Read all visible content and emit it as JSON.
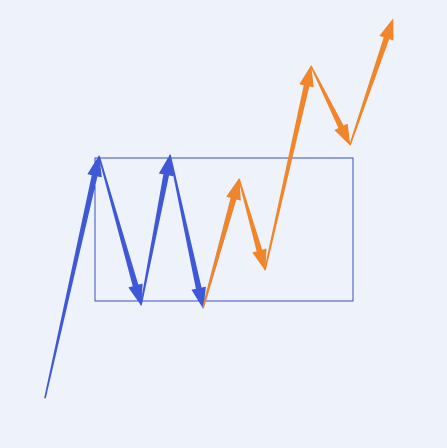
{
  "diagram": {
    "background_color": "#eef3fb",
    "range_box_color": "#3b4fc4",
    "blue_color": "#3f58d6",
    "orange_color": "#f0852a",
    "legs": [
      {
        "name": "arrow-blue-1",
        "color": "blue"
      },
      {
        "name": "arrow-blue-2",
        "color": "blue"
      },
      {
        "name": "arrow-blue-3",
        "color": "blue"
      },
      {
        "name": "arrow-blue-4",
        "color": "blue"
      },
      {
        "name": "arrow-blue-5",
        "color": "blue"
      },
      {
        "name": "arrow-orange-1",
        "color": "orange"
      },
      {
        "name": "arrow-orange-2",
        "color": "orange"
      },
      {
        "name": "arrow-orange-3",
        "color": "orange"
      },
      {
        "name": "arrow-orange-4",
        "color": "orange"
      },
      {
        "name": "arrow-orange-5",
        "color": "orange"
      }
    ]
  }
}
